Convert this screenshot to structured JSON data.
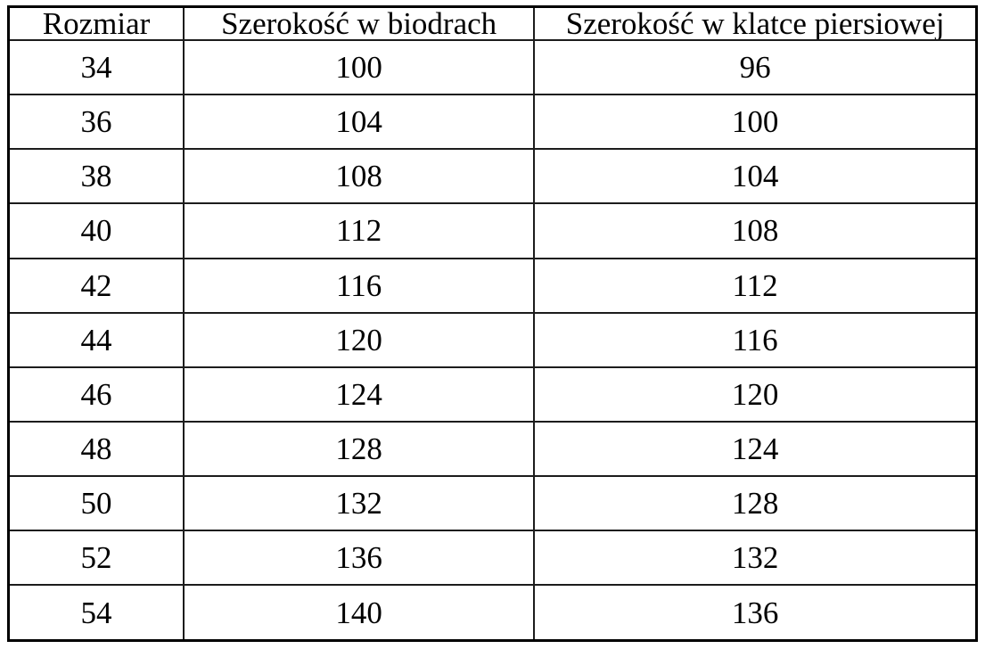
{
  "colors": {
    "background": "#ffffff",
    "border_outer": "#000000",
    "border_inner": "#1c1c1c",
    "text": "#000000"
  },
  "table": {
    "headers": [
      "Rozmiar",
      "Szerokość w biodrach",
      "Szerokość w klatce piersiowej"
    ],
    "rows": [
      [
        "34",
        "100",
        "96"
      ],
      [
        "36",
        "104",
        "100"
      ],
      [
        "38",
        "108",
        "104"
      ],
      [
        "40",
        "112",
        "108"
      ],
      [
        "42",
        "116",
        "112"
      ],
      [
        "44",
        "120",
        "116"
      ],
      [
        "46",
        "124",
        "120"
      ],
      [
        "48",
        "128",
        "124"
      ],
      [
        "50",
        "132",
        "128"
      ],
      [
        "52",
        "136",
        "132"
      ],
      [
        "54",
        "140",
        "136"
      ]
    ]
  },
  "chart_data": {
    "type": "table",
    "title": "",
    "columns": [
      "Rozmiar",
      "Szerokość w biodrach",
      "Szerokość w klatce piersiowej"
    ],
    "rows": [
      [
        34,
        100,
        96
      ],
      [
        36,
        104,
        100
      ],
      [
        38,
        108,
        104
      ],
      [
        40,
        112,
        108
      ],
      [
        42,
        116,
        112
      ],
      [
        44,
        120,
        116
      ],
      [
        46,
        124,
        120
      ],
      [
        48,
        128,
        124
      ],
      [
        50,
        132,
        128
      ],
      [
        52,
        136,
        132
      ],
      [
        54,
        140,
        136
      ]
    ],
    "layout_hints": {
      "grid": "all-borders",
      "header_row": true,
      "cell_alignment": "center"
    }
  }
}
